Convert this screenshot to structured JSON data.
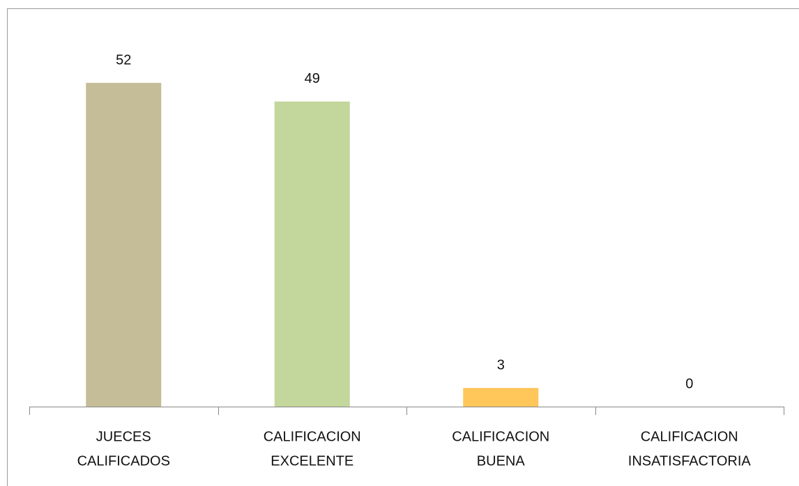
{
  "chart_data": {
    "type": "bar",
    "categories": [
      [
        "JUECES",
        "CALIFICADOS"
      ],
      [
        "CALIFICACION",
        "EXCELENTE"
      ],
      [
        "CALIFICACION",
        "BUENA"
      ],
      [
        "CALIFICACION",
        "INSATISFACTORIA"
      ]
    ],
    "values": [
      52,
      49,
      3,
      0
    ],
    "colors": [
      "#c4bd97",
      "#c3d69b",
      "#ffc65a",
      "#8eb4e3"
    ]
  }
}
